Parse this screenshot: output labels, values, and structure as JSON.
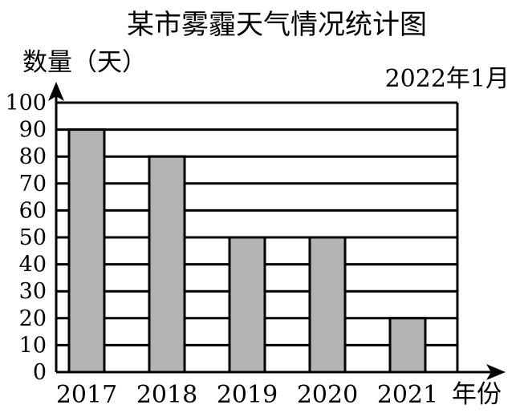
{
  "chart_data": {
    "type": "bar",
    "title": "某市雾霾天气情况统计图",
    "subtitle": "2022年1月",
    "ylabel": "数量（天）",
    "xlabel": "年份",
    "categories": [
      "2017",
      "2018",
      "2019",
      "2020",
      "2021"
    ],
    "values": [
      90,
      80,
      50,
      50,
      20
    ],
    "ylim": [
      0,
      100
    ],
    "yticks": [
      "0",
      "10",
      "20",
      "30",
      "40",
      "50",
      "60",
      "70",
      "80",
      "90",
      "100"
    ],
    "grid": true,
    "bar_color": "#b3b3b3"
  }
}
